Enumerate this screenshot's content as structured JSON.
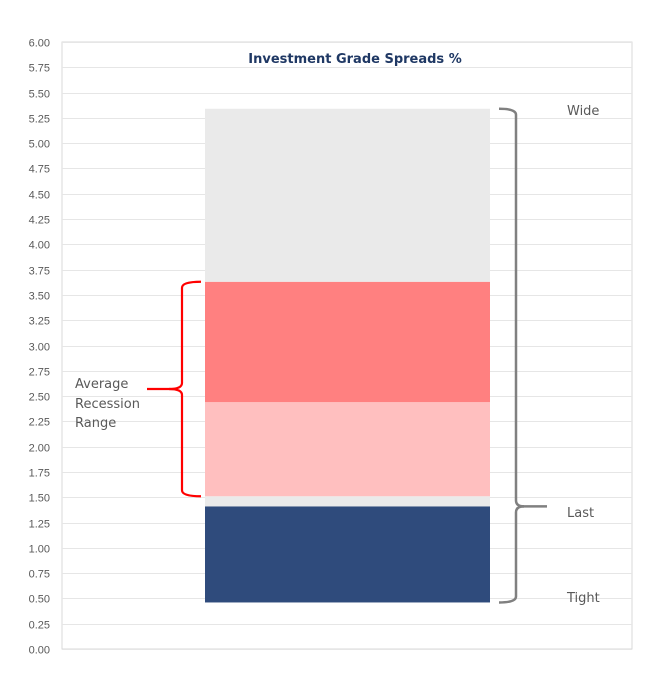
{
  "chart_data": {
    "type": "bar",
    "title": "Investment Grade Spreads %",
    "xlabel": "",
    "ylabel": "",
    "ylim": [
      0,
      6
    ],
    "yticks": [
      "0.00",
      "0.25",
      "0.50",
      "0.75",
      "1.00",
      "1.25",
      "1.50",
      "1.75",
      "2.00",
      "2.25",
      "2.50",
      "2.75",
      "3.00",
      "3.25",
      "3.50",
      "3.75",
      "4.00",
      "4.25",
      "4.50",
      "4.75",
      "5.00",
      "5.25",
      "5.50",
      "5.75",
      "6.00"
    ],
    "grid": true,
    "stacked_ranges": [
      {
        "from": 0.46,
        "to": 1.41,
        "color": "#2f4b7c"
      },
      {
        "from": 1.41,
        "to": 1.51,
        "color": "#eaeaea"
      },
      {
        "from": 1.51,
        "to": 2.44,
        "color": "#ffbfbf"
      },
      {
        "from": 2.44,
        "to": 3.63,
        "color": "#ff8080"
      },
      {
        "from": 3.63,
        "to": 5.34,
        "color": "#eaeaea"
      }
    ],
    "annotations": {
      "recession": {
        "lines": [
          "Average",
          "Recession",
          "Range"
        ],
        "from": 1.51,
        "to": 3.63,
        "color": "#ff0000"
      },
      "wide": {
        "label": "Wide",
        "value": 5.34
      },
      "last": {
        "label": "Last",
        "value": 1.41
      },
      "tight": {
        "label": "Tight",
        "value": 0.46
      },
      "bracket_color": "#808080"
    }
  }
}
